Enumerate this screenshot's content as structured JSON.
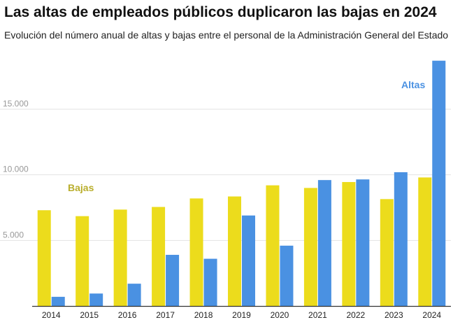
{
  "header": {
    "title": "Las altas de empleados públicos duplicaron las bajas en 2024",
    "subtitle": "Evolución del número anual de altas y bajas entre el personal de la Administración General del Estado"
  },
  "chart_data": {
    "type": "bar",
    "categories": [
      "2014",
      "2015",
      "2016",
      "2017",
      "2018",
      "2019",
      "2020",
      "2021",
      "2022",
      "2023",
      "2024"
    ],
    "series": [
      {
        "name": "Bajas",
        "color": "#ecdc1c",
        "label_color": "#b9ae2c",
        "values": [
          7300,
          6850,
          7350,
          7550,
          8200,
          8350,
          9200,
          9000,
          9450,
          8150,
          9800
        ]
      },
      {
        "name": "Altas",
        "color": "#4a91e2",
        "label_color": "#4a91e2",
        "values": [
          700,
          950,
          1700,
          3900,
          3600,
          6900,
          4600,
          9600,
          9650,
          10200,
          18700
        ]
      }
    ],
    "yticks": [
      5000,
      10000,
      15000
    ],
    "ytick_labels": [
      "5.000",
      "10.000",
      "15.000"
    ],
    "ylim": [
      0,
      19000
    ],
    "grid": true,
    "title": "Las altas de empleados públicos duplicaron las bajas en 2024",
    "subtitle": "Evolución del número anual de altas y bajas entre el personal de la Administración General del Estado",
    "xlabel": "",
    "ylabel": "",
    "legend": "inline labels"
  }
}
